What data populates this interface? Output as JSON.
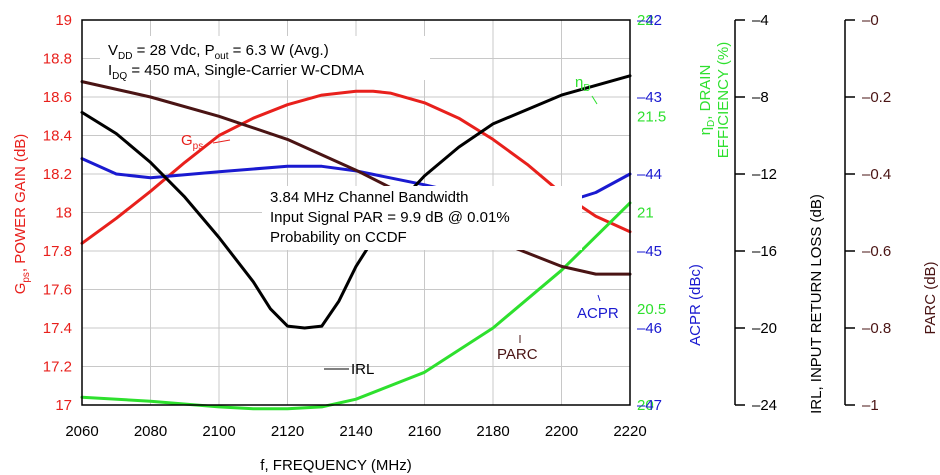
{
  "chart_data": {
    "type": "line",
    "x": [
      2060,
      2080,
      2100,
      2120,
      2140,
      2160,
      2180,
      2200,
      2220
    ],
    "x_ticks": [
      "2060",
      "2080",
      "2100",
      "2120",
      "2140",
      "2160",
      "2180",
      "2200",
      "2220"
    ],
    "xlabel": "f, FREQUENCY (MHz)",
    "xlim": [
      2060,
      2220
    ],
    "grid": true,
    "axes": {
      "gain": {
        "label_main": "G",
        "label_sub": "ps",
        "label_rest": ", POWER GAIN (dB)",
        "ylim": [
          17,
          19
        ],
        "ticks": [
          "17",
          "17.2",
          "17.4",
          "17.6",
          "17.8",
          "18",
          "18.2",
          "18.4",
          "18.6",
          "18.8",
          "19"
        ],
        "color": "#e8201c"
      },
      "efficiency": {
        "label_line1_main": "η",
        "label_line1_sub": "D",
        "label_line1_rest": ", DRAIN",
        "label_line2": "EFFICIENCY (%)",
        "ylim": [
          20,
          22
        ],
        "ticks": [
          "20",
          "20.5",
          "21",
          "21.5",
          "22"
        ],
        "color": "#2ee02e"
      },
      "acpr": {
        "label": "ACPR (dBc)",
        "ylim": [
          -47,
          -42
        ],
        "ticks": [
          "-42",
          "-43",
          "-44",
          "-45",
          "-46",
          "-47"
        ],
        "color": "#1a1ad0"
      },
      "irl": {
        "label": "IRL, INPUT RETURN LOSS (dB)",
        "ylim": [
          -24,
          -4
        ],
        "ticks": [
          "-4",
          "-8",
          "-12",
          "-16",
          "-20",
          "-24"
        ],
        "color": "#000000"
      },
      "parc": {
        "label": "PARC (dB)",
        "ylim": [
          -1,
          0
        ],
        "ticks": [
          "-0",
          "-0.2",
          "-0.4",
          "-0.6",
          "-0.8",
          "-1"
        ],
        "color": "#4a1414"
      }
    },
    "series": [
      {
        "name": "Gps",
        "label_main": "G",
        "label_sub": "ps",
        "axis": "gain",
        "color": "#e8201c",
        "x": [
          2060,
          2070,
          2080,
          2090,
          2100,
          2110,
          2120,
          2130,
          2140,
          2145,
          2150,
          2160,
          2170,
          2180,
          2190,
          2200,
          2210,
          2220
        ],
        "y": [
          17.84,
          17.97,
          18.11,
          18.26,
          18.4,
          18.49,
          18.56,
          18.61,
          18.63,
          18.63,
          18.62,
          18.57,
          18.49,
          18.38,
          18.25,
          18.1,
          17.98,
          17.9
        ]
      },
      {
        "name": "ηD",
        "label_main": "η",
        "label_sub": "D",
        "axis": "efficiency",
        "color": "#2ee02e",
        "x": [
          2060,
          2080,
          2100,
          2110,
          2120,
          2130,
          2140,
          2160,
          2180,
          2200,
          2220
        ],
        "y": [
          20.04,
          20.02,
          19.99,
          19.98,
          19.98,
          19.99,
          20.03,
          20.17,
          20.4,
          20.7,
          21.05
        ]
      },
      {
        "name": "ACPR",
        "label_main": "ACPR",
        "label_sub": "",
        "axis": "acpr",
        "color": "#1a1ad0",
        "x": [
          2060,
          2070,
          2080,
          2100,
          2120,
          2130,
          2140,
          2160,
          2180,
          2190,
          2200,
          2210,
          2220
        ],
        "y": [
          -43.8,
          -44.0,
          -44.05,
          -43.97,
          -43.9,
          -43.9,
          -43.96,
          -44.14,
          -44.34,
          -44.4,
          -44.38,
          -44.24,
          -44.0
        ]
      },
      {
        "name": "IRL",
        "label_main": "IRL",
        "label_sub": "",
        "axis": "irl",
        "color": "#000000",
        "x": [
          2060,
          2070,
          2080,
          2090,
          2100,
          2110,
          2115,
          2120,
          2125,
          2130,
          2135,
          2140,
          2150,
          2160,
          2170,
          2180,
          2200,
          2220
        ],
        "y": [
          -8.8,
          -9.9,
          -11.4,
          -13.2,
          -15.3,
          -17.6,
          -19.0,
          -19.9,
          -20.0,
          -19.9,
          -18.6,
          -16.8,
          -14.0,
          -12.1,
          -10.6,
          -9.4,
          -7.9,
          -6.9
        ]
      },
      {
        "name": "PARC",
        "label_main": "PARC",
        "label_sub": "",
        "axis": "parc",
        "color": "#4a1414",
        "x": [
          2060,
          2080,
          2100,
          2120,
          2140,
          2160,
          2180,
          2200,
          2210,
          2220
        ],
        "y": [
          -0.16,
          -0.2,
          -0.25,
          -0.31,
          -0.39,
          -0.48,
          -0.57,
          -0.64,
          -0.66,
          -0.66
        ]
      }
    ],
    "annotations": {
      "conditions": {
        "line1_a": "V",
        "line1_a_sub": "DD",
        "line1_b": " = 28 Vdc, P",
        "line1_b_sub": "out",
        "line1_c": " = 6.3 W (Avg.)",
        "line2_a": "I",
        "line2_a_sub": "DQ",
        "line2_b": " = 450 mA, Single-Carrier W-CDMA"
      },
      "signal": {
        "line1": "3.84 MHz Channel Bandwidth",
        "line2": "Input Signal PAR = 9.9 dB @ 0.01%",
        "line3": "Probability on CCDF"
      }
    }
  }
}
